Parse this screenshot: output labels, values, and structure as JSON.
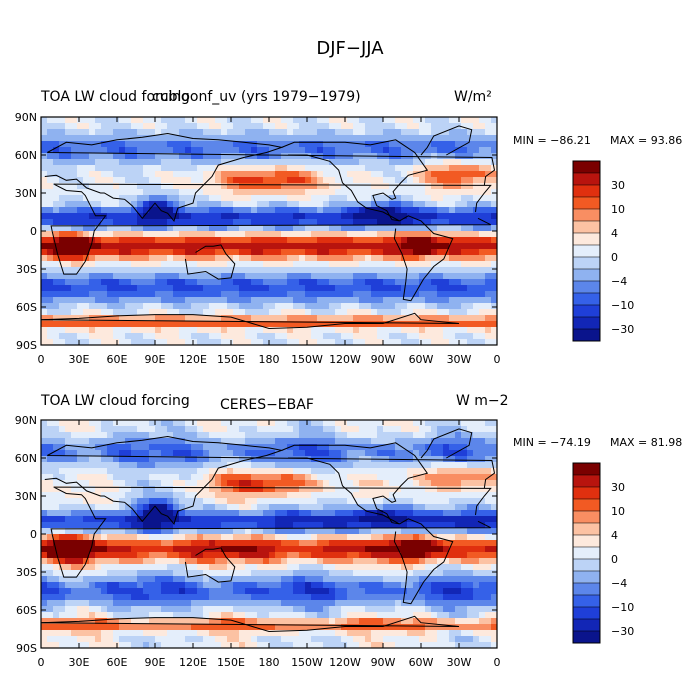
{
  "title": "DJF−JJA",
  "panels": [
    {
      "left_title_a": "TOA LW cloud forcing",
      "left_title_b": "cubloonf_uv (yrs 1979−1979)",
      "units": "W/m²",
      "min_label": "MIN = −86.21",
      "max_label": "MAX =  93.86",
      "min": -86.21,
      "max": 93.86
    },
    {
      "left_title_a": "TOA LW cloud forcing",
      "left_title_b": "CERES−EBAF",
      "units": "W m−2",
      "min_label": "MIN = −74.19",
      "max_label": "MAX =  81.98",
      "min": -74.19,
      "max": 81.98
    }
  ],
  "lat_ticks": [
    "90N",
    "60N",
    "30N",
    "0",
    "30S",
    "60S",
    "90S"
  ],
  "lon_ticks": [
    "0",
    "30E",
    "60E",
    "90E",
    "120E",
    "150E",
    "180",
    "150W",
    "120W",
    "90W",
    "60W",
    "30W",
    "0"
  ],
  "colorbar_labels": [
    "30",
    "10",
    "4",
    "0",
    "−4",
    "−10",
    "−30"
  ],
  "colors": [
    "#7a0000",
    "#b8140e",
    "#e0300f",
    "#f25a23",
    "#f98e62",
    "#fcc2a3",
    "#fde9dd",
    "#e4eefb",
    "#bcd3f6",
    "#8fb2f0",
    "#5c86ea",
    "#3561e8",
    "#1f3fd8",
    "#1226b6",
    "#0a148c"
  ]
}
